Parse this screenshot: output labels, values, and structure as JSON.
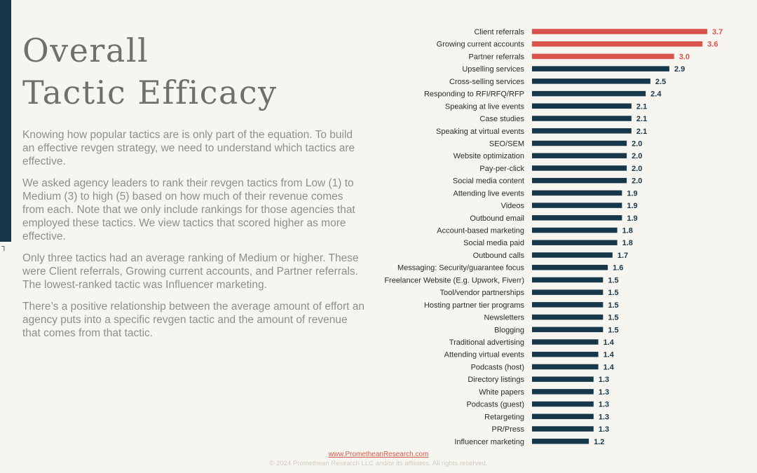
{
  "page": {
    "title_line1": "Overall",
    "title_line2": "Tactic Efficacy",
    "paragraphs": [
      "Knowing how popular tactics are is only part of the equation. To build an effective revgen strategy, we need to understand which tactics are effective.",
      "We asked agency leaders to rank their revgen tactics from Low (1) to Medium (3) to high (5) based on how much of their revenue comes from each. Note that we only include rankings for those agencies that employed these tactics. We view tactics that scored higher as more effective.",
      "Only three tactics had an average ranking of Medium or higher. These were Client referrals, Growing current accounts, and Partner referrals. The lowest-ranked tactic was Influencer marketing.",
      "There’s a positive relationship between the average amount of effort an agency puts into a specific revgen tactic and the amount of revenue that comes from that tactic."
    ],
    "footer_link": "www.PrometheanResearch.com",
    "footer_copy": "© 2024 Promethean Research LLC and/or its affiliates. All rights reserved."
  },
  "colors": {
    "highlight": "#d9534a",
    "bar": "#17384a",
    "sidebar": "#17384a"
  },
  "chart_data": {
    "type": "bar",
    "orientation": "horizontal",
    "title": "",
    "xlabel": "",
    "ylabel": "",
    "xlim": [
      0,
      3.7
    ],
    "grid": false,
    "legend": "none",
    "highlighted_count": 3,
    "categories": [
      "Client referrals",
      "Growing current accounts",
      "Partner referrals",
      "Upselling services",
      "Cross-selling services",
      "Responding to RFI/RFQ/RFP",
      "Speaking at live events",
      "Case studies",
      "Speaking at virtual events",
      "SEO/SEM",
      "Website optimization",
      "Pay-per-click",
      "Social media content",
      "Attending live events",
      "Videos",
      "Outbound email",
      "Account-based marketing",
      "Social media paid",
      "Outbound calls",
      "Messaging: Security/guarantee focus",
      "Freelancer Website (E.g. Upwork, Fiverr)",
      "Tool/vendor partnerships",
      "Hosting partner tier programs",
      "Newsletters",
      "Blogging",
      "Traditional advertising",
      "Attending virtual events",
      "Podcasts (host)",
      "Directory listings",
      "White papers",
      "Podcasts (guest)",
      "Retargeting",
      "PR/Press",
      "Influencer marketing"
    ],
    "values": [
      3.7,
      3.6,
      3.0,
      2.9,
      2.5,
      2.4,
      2.1,
      2.1,
      2.1,
      2.0,
      2.0,
      2.0,
      2.0,
      1.9,
      1.9,
      1.9,
      1.8,
      1.8,
      1.7,
      1.6,
      1.5,
      1.5,
      1.5,
      1.5,
      1.5,
      1.4,
      1.4,
      1.4,
      1.3,
      1.3,
      1.3,
      1.3,
      1.3,
      1.2
    ],
    "value_labels": [
      "3.7",
      "3.6",
      "3.0",
      "2.9",
      "2.5",
      "2.4",
      "2.1",
      "2.1",
      "2.1",
      "2.0",
      "2.0",
      "2.0",
      "2.0",
      "1.9",
      "1.9",
      "1.9",
      "1.8",
      "1.8",
      "1.7",
      "1.6",
      "1.5",
      "1.5",
      "1.5",
      "1.5",
      "1.5",
      "1.4",
      "1.4",
      "1.4",
      "1.3",
      "1.3",
      "1.3",
      "1.3",
      "1.3",
      "1.2"
    ]
  }
}
